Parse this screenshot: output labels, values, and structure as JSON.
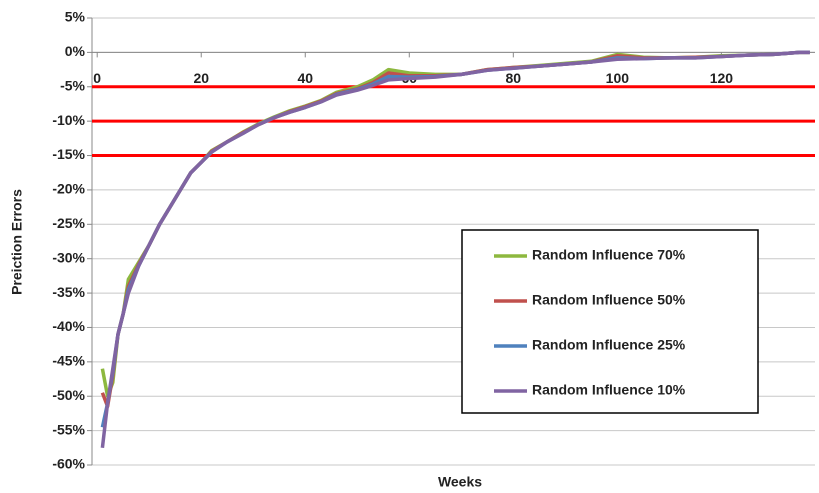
{
  "chart_data": {
    "type": "line",
    "x_label": "Weeks",
    "y_label": "Preiction Errors",
    "x": [
      1,
      2,
      3,
      4,
      5,
      6,
      8,
      10,
      12,
      14,
      16,
      18,
      20,
      22,
      25,
      28,
      31,
      34,
      37,
      40,
      43,
      46,
      50,
      53,
      56,
      60,
      65,
      70,
      75,
      80,
      85,
      90,
      95,
      100,
      105,
      110,
      115,
      120,
      125,
      130,
      135,
      137
    ],
    "series": [
      {
        "name": "Random Influence 70%",
        "color": "#8db83f",
        "values": [
          -46,
          -50,
          -48,
          -41,
          -38,
          -33,
          -30.5,
          -28,
          -25,
          -22.5,
          -20,
          -17.5,
          -16,
          -14.3,
          -13,
          -11.6,
          -10.4,
          -9.4,
          -8.5,
          -7.8,
          -7,
          -5.8,
          -5,
          -4,
          -2.5,
          -3,
          -3.2,
          -3.2,
          -2.5,
          -2.2,
          -1.9,
          -1.6,
          -1.3,
          -0.3,
          -0.7,
          -0.8,
          -0.7,
          -0.5,
          -0.4,
          -0.3,
          0,
          0
        ]
      },
      {
        "name": "Random Influence 50%",
        "color": "#c0504d",
        "values": [
          -49.5,
          -51.5,
          -47,
          -41,
          -38,
          -34,
          -30.8,
          -28,
          -25,
          -22.5,
          -20,
          -17.5,
          -16,
          -14.4,
          -13,
          -11.7,
          -10.5,
          -9.5,
          -8.6,
          -7.9,
          -7.1,
          -6,
          -5.3,
          -4.4,
          -3,
          -3.4,
          -3.4,
          -3.2,
          -2.5,
          -2.2,
          -2,
          -1.7,
          -1.4,
          -0.5,
          -0.8,
          -0.8,
          -0.7,
          -0.6,
          -0.4,
          -0.3,
          0,
          0
        ]
      },
      {
        "name": "Random Influence 25%",
        "color": "#4f81bd",
        "values": [
          -54.5,
          -51,
          -46.5,
          -41,
          -38,
          -34.5,
          -31,
          -28,
          -25,
          -22.5,
          -20,
          -17.5,
          -16,
          -14.5,
          -13,
          -11.8,
          -10.5,
          -9.5,
          -8.7,
          -8,
          -7.2,
          -6.1,
          -5.4,
          -4.6,
          -3.5,
          -3.6,
          -3.5,
          -3.2,
          -2.6,
          -2.3,
          -2,
          -1.7,
          -1.4,
          -0.8,
          -0.9,
          -0.8,
          -0.8,
          -0.6,
          -0.4,
          -0.3,
          0,
          0
        ]
      },
      {
        "name": "Random Influence 10%",
        "color": "#8064a2",
        "values": [
          -57.5,
          -51,
          -46,
          -41,
          -38,
          -35,
          -31,
          -28,
          -25,
          -22.5,
          -20,
          -17.5,
          -16,
          -14.5,
          -13,
          -11.8,
          -10.5,
          -9.5,
          -8.7,
          -8,
          -7.2,
          -6.2,
          -5.5,
          -4.8,
          -4,
          -3.8,
          -3.6,
          -3.2,
          -2.6,
          -2.3,
          -2,
          -1.7,
          -1.4,
          -1,
          -0.9,
          -0.8,
          -0.8,
          -0.6,
          -0.4,
          -0.3,
          0,
          0
        ]
      }
    ],
    "reference_lines": [
      -5,
      -10,
      -15
    ],
    "reference_color": "#ff0000",
    "xlim": [
      -1,
      138
    ],
    "xticks": [
      0,
      20,
      40,
      60,
      80,
      100,
      120
    ],
    "ylim": [
      -60,
      5
    ],
    "yticks": [
      {
        "value": 5,
        "label": "5%"
      },
      {
        "value": 0,
        "label": "0%"
      },
      {
        "value": -5,
        "label": "-5%"
      },
      {
        "value": -10,
        "label": "-10%"
      },
      {
        "value": -15,
        "label": "-15%"
      },
      {
        "value": -20,
        "label": "-20%"
      },
      {
        "value": -25,
        "label": "-25%"
      },
      {
        "value": -30,
        "label": "-30%"
      },
      {
        "value": -35,
        "label": "-35%"
      },
      {
        "value": -40,
        "label": "-40%"
      },
      {
        "value": -45,
        "label": "-45%"
      },
      {
        "value": -50,
        "label": "-50%"
      },
      {
        "value": -55,
        "label": "-55%"
      },
      {
        "value": -60,
        "label": "-60%"
      }
    ],
    "grid": true
  }
}
